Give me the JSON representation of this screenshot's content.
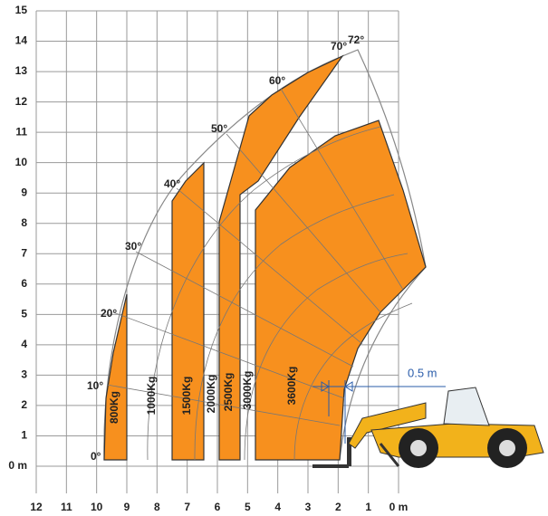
{
  "chart_data": {
    "type": "load-chart",
    "xlim": [
      12,
      0
    ],
    "ylim": [
      0,
      15
    ],
    "xticks": [
      12,
      11,
      10,
      9,
      8,
      7,
      6,
      5,
      4,
      3,
      2,
      1,
      {
        "value": 0,
        "label": "0 m"
      }
    ],
    "yticks": [
      {
        "value": 0,
        "label": "0 m"
      },
      1,
      2,
      3,
      4,
      5,
      6,
      7,
      8,
      9,
      10,
      11,
      12,
      13,
      14,
      15
    ],
    "grid": true,
    "color": "#f7901e",
    "angle_labels": [
      "0°",
      "10°",
      "20°",
      "30°",
      "40°",
      "50°",
      "60°",
      "70°",
      "72°"
    ],
    "load_labels": [
      "800Kg",
      "1000Kg",
      "1500Kg",
      "2000Kg",
      "2500Kg",
      "3000Kg",
      "3600Kg"
    ],
    "dimension_label": "0.5 m"
  }
}
